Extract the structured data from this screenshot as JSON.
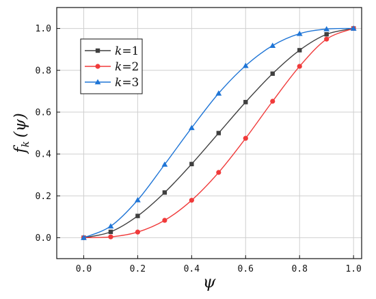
{
  "chart_data": {
    "type": "line",
    "xlabel": "ψ",
    "ylabel_main": "f",
    "ylabel_sub": "k",
    "ylabel_arg": "(ψ)",
    "xlim": [
      -0.1,
      1.03
    ],
    "ylim": [
      -0.1,
      1.1
    ],
    "x_ticks": [
      0.0,
      0.2,
      0.4,
      0.6,
      0.8,
      1.0
    ],
    "x_tick_labels": [
      "0.0",
      "0.2",
      "0.4",
      "0.6",
      "0.8",
      "1.0"
    ],
    "y_ticks": [
      0.0,
      0.2,
      0.4,
      0.6,
      0.8,
      1.0
    ],
    "y_tick_labels": [
      "0.0",
      "0.2",
      "0.4",
      "0.6",
      "0.8",
      "1.0"
    ],
    "grid": true,
    "legend_position": "upper-left",
    "x": [
      0.0,
      0.1,
      0.2,
      0.3,
      0.4,
      0.5,
      0.6,
      0.7,
      0.8,
      0.9,
      1.0
    ],
    "series": [
      {
        "name": "k=1",
        "name_var": "k",
        "name_rest": "=1",
        "color": "#3f3f3f",
        "marker": "square",
        "values": [
          0.0,
          0.028,
          0.104,
          0.216,
          0.352,
          0.5,
          0.648,
          0.784,
          0.896,
          0.972,
          1.0
        ]
      },
      {
        "name": "k=2",
        "name_var": "k",
        "name_rest": "=2",
        "color": "#f03a3a",
        "marker": "circle",
        "values": [
          0.0,
          0.004,
          0.027,
          0.083,
          0.179,
          0.312,
          0.475,
          0.652,
          0.819,
          0.949,
          1.0
        ]
      },
      {
        "name": "k=3",
        "name_var": "k",
        "name_rest": "=3",
        "color": "#1f75d6",
        "marker": "triangle",
        "values": [
          0.0,
          0.055,
          0.18,
          0.35,
          0.525,
          0.69,
          0.822,
          0.918,
          0.975,
          0.997,
          1.0
        ]
      }
    ]
  }
}
